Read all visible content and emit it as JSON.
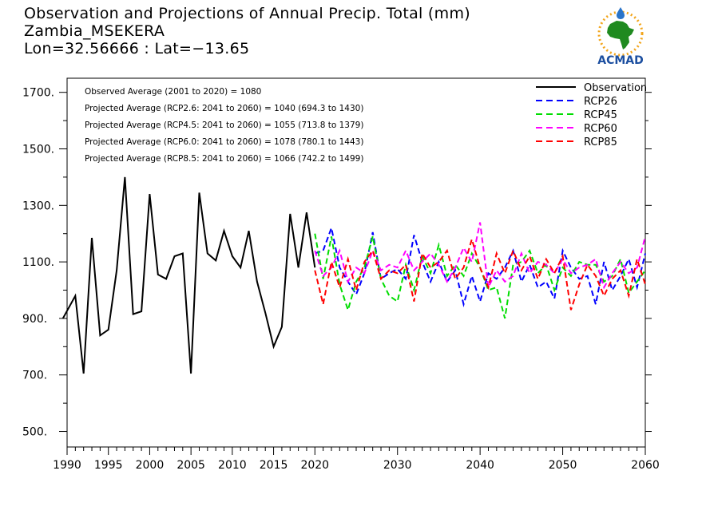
{
  "header": {
    "title": "Observation and Projections of Annual Precip. Total (mm)",
    "station": "Zambia_MSEKERA",
    "coords": "Lon=32.56666 : Lat=−13.65"
  },
  "logo": {
    "text": "ACMAD"
  },
  "stats": [
    "Observed Average (2001 to 2020) = 1080",
    "Projected Average (RCP2.6: 2041 to 2060) = 1040 (694.3 to 1430)",
    "Projected Average (RCP4.5: 2041 to 2060) = 1055 (713.8 to 1379)",
    "Projected Average (RCP6.0: 2041 to 2060) = 1078 (780.1 to 1443)",
    "Projected Average (RCP8.5: 2041 to 2060) = 1066 (742.2 to 1499)"
  ],
  "chart_data": {
    "type": "line",
    "title": "Observation and Projections of Annual Precip. Total (mm)",
    "xlabel": "",
    "ylabel": "",
    "xlim": [
      1990,
      2060
    ],
    "ylim": [
      445,
      1750
    ],
    "x_ticks": [
      1990,
      1995,
      2000,
      2005,
      2010,
      2015,
      2020,
      2030,
      2040,
      2050,
      2060
    ],
    "y_ticks": [
      500,
      700,
      900,
      1100,
      1300,
      1500,
      1700
    ],
    "y_tick_labels": [
      "500.",
      "700.",
      "900.",
      "1100.",
      "1300.",
      "1500.",
      "1700."
    ],
    "legend_position": "top-right",
    "grid": false,
    "series": [
      {
        "name": "Observation",
        "color": "#000000",
        "dash": "solid",
        "x": [
          1989.5,
          1991,
          1992,
          1993,
          1994,
          1995,
          1996,
          1997,
          1998,
          1999,
          2000,
          2001,
          2002,
          2003,
          2004,
          2005,
          2006,
          2007,
          2008,
          2009,
          2010,
          2011,
          2012,
          2013,
          2014,
          2015,
          2016,
          2017,
          2018,
          2019,
          2020
        ],
        "values": [
          900,
          980,
          705,
          1185,
          840,
          860,
          1070,
          1400,
          915,
          925,
          1340,
          1055,
          1040,
          1120,
          1130,
          705,
          1345,
          1130,
          1105,
          1210,
          1120,
          1080,
          1210,
          1030,
          920,
          800,
          870,
          1270,
          1080,
          1275,
          1080
        ]
      },
      {
        "name": "RCP26",
        "color": "#0000ff",
        "dash": "dash",
        "x": [
          2020,
          2021,
          2022,
          2023,
          2024,
          2025,
          2026,
          2027,
          2028,
          2029,
          2030,
          2031,
          2032,
          2033,
          2034,
          2035,
          2036,
          2037,
          2038,
          2039,
          2040,
          2041,
          2042,
          2043,
          2044,
          2045,
          2046,
          2047,
          2048,
          2049,
          2050,
          2051,
          2052,
          2053,
          2054,
          2055,
          2056,
          2057,
          2058,
          2059,
          2060
        ],
        "values": [
          1130,
          1140,
          1220,
          1080,
          1030,
          985,
          1060,
          1205,
          1040,
          1060,
          1075,
          1040,
          1195,
          1100,
          1030,
          1100,
          1030,
          1070,
          950,
          1050,
          960,
          1060,
          1040,
          1080,
          1140,
          1030,
          1090,
          1010,
          1030,
          970,
          1140,
          1080,
          1040,
          1050,
          950,
          1100,
          1000,
          1050,
          1110,
          1010,
          1130
        ]
      },
      {
        "name": "RCP45",
        "color": "#00dd00",
        "dash": "dash",
        "x": [
          2020,
          2021,
          2022,
          2023,
          2024,
          2025,
          2026,
          2027,
          2028,
          2029,
          2030,
          2031,
          2032,
          2033,
          2034,
          2035,
          2036,
          2037,
          2038,
          2039,
          2040,
          2041,
          2042,
          2043,
          2044,
          2045,
          2046,
          2047,
          2048,
          2049,
          2050,
          2051,
          2052,
          2053,
          2054,
          2055,
          2056,
          2057,
          2058,
          2059,
          2060
        ],
        "values": [
          1200,
          1040,
          1190,
          1020,
          930,
          1030,
          1080,
          1190,
          1040,
          980,
          960,
          1090,
          1000,
          1120,
          1060,
          1160,
          1050,
          1090,
          1050,
          1130,
          1080,
          1000,
          1010,
          900,
          1090,
          1100,
          1140,
          1060,
          1090,
          1000,
          1080,
          1050,
          1100,
          1090,
          1090,
          1030,
          1050,
          1110,
          990,
          1030,
          1070
        ]
      },
      {
        "name": "RCP60",
        "color": "#ff00ff",
        "dash": "dash",
        "x": [
          2020,
          2021,
          2022,
          2023,
          2024,
          2025,
          2026,
          2027,
          2028,
          2029,
          2030,
          2031,
          2032,
          2033,
          2034,
          2035,
          2036,
          2037,
          2038,
          2039,
          2040,
          2041,
          2042,
          2043,
          2044,
          2045,
          2046,
          2047,
          2048,
          2049,
          2050,
          2051,
          2052,
          2053,
          2054,
          2055,
          2056,
          2057,
          2058,
          2059,
          2060
        ],
        "values": [
          1140,
          1050,
          1080,
          1140,
          1030,
          1080,
          1060,
          1140,
          1070,
          1090,
          1080,
          1140,
          1070,
          1100,
          1130,
          1090,
          1030,
          1080,
          1150,
          1100,
          1240,
          1010,
          1070,
          1030,
          1050,
          1130,
          1060,
          1100,
          1090,
          1060,
          1110,
          1060,
          1080,
          1090,
          1110,
          1010,
          1060,
          1100,
          1060,
          1080,
          1190
        ]
      },
      {
        "name": "RCP85",
        "color": "#ff0000",
        "dash": "dash",
        "x": [
          2020,
          2021,
          2022,
          2023,
          2024,
          2025,
          2026,
          2027,
          2028,
          2029,
          2030,
          2031,
          2032,
          2033,
          2034,
          2035,
          2036,
          2037,
          2038,
          2039,
          2040,
          2041,
          2042,
          2043,
          2044,
          2045,
          2046,
          2047,
          2048,
          2049,
          2050,
          2051,
          2052,
          2053,
          2054,
          2055,
          2056,
          2057,
          2058,
          2059,
          2060
        ],
        "values": [
          1070,
          950,
          1100,
          1010,
          1110,
          1000,
          1100,
          1140,
          1040,
          1070,
          1060,
          1090,
          960,
          1130,
          1080,
          1100,
          1140,
          1040,
          1080,
          1180,
          1080,
          1010,
          1130,
          1060,
          1140,
          1070,
          1120,
          1040,
          1110,
          1060,
          1120,
          930,
          1020,
          1090,
          1050,
          980,
          1040,
          1070,
          980,
          1110,
          1020
        ]
      }
    ]
  }
}
